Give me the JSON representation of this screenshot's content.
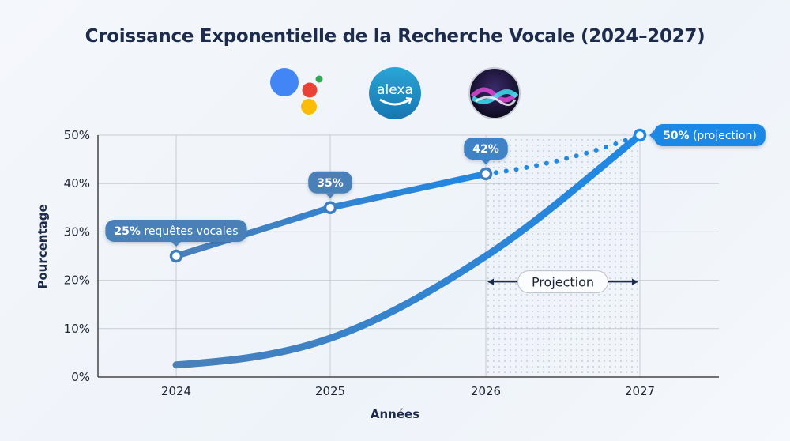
{
  "title": "Croissance Exponentielle de la Recherche Vocale (2024–2027)",
  "logos": [
    {
      "name": "google-assistant-logo"
    },
    {
      "name": "alexa-logo",
      "text": "alexa"
    },
    {
      "name": "siri-logo"
    }
  ],
  "chart_data": {
    "type": "line",
    "title": "Croissance Exponentielle de la Recherche Vocale (2024–2027)",
    "xlabel": "Années",
    "ylabel": "Pourcentage",
    "categories": [
      "2024",
      "2025",
      "2026",
      "2027"
    ],
    "ylim": [
      0,
      50
    ],
    "yticks": [
      "0%",
      "10%",
      "20%",
      "30%",
      "40%",
      "50%"
    ],
    "grid": true,
    "series": [
      {
        "values": [
          25,
          35,
          42,
          50
        ],
        "projected_from_index": 2,
        "style": "solid then dotted",
        "color": "#3f7fc1"
      },
      {
        "values": [
          2.5,
          8,
          25,
          50
        ],
        "style": "smooth curve",
        "color": "#1e88e5"
      }
    ],
    "annotations": {
      "p2024_bold": "25%",
      "p2024_rest": " requêtes vocales",
      "p2025": "35%",
      "p2026": "42%",
      "p2027_bold": "50%",
      "p2027_rest": " (projection)",
      "projection_region": "Projection"
    },
    "projection_range": [
      "2026",
      "2027"
    ]
  }
}
